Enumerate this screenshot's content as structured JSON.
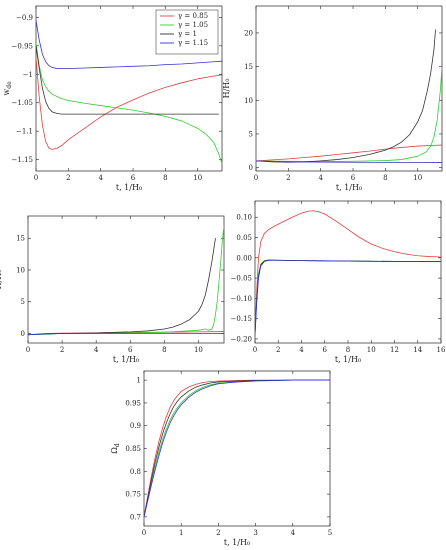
{
  "chart_data": [
    {
      "type": "line",
      "xlabel": "t, 1/H₀",
      "ylabel": "w_de",
      "xlim": [
        0,
        11.5
      ],
      "ylim": [
        -1.17,
        -0.88
      ],
      "xticks": [
        0,
        2,
        4,
        6,
        8,
        10
      ],
      "yticks": [
        -0.9,
        -0.95,
        -1,
        -1.05,
        -1.1,
        -1.15
      ],
      "ytick_labels": [
        "−0.9",
        "−0.95",
        "−1",
        "−1.05",
        "−1.1",
        "−1.15"
      ],
      "legend": "top-right",
      "series": [
        {
          "name": "γ = 0.85",
          "color": "#e04040",
          "x": [
            0,
            0.2,
            0.4,
            0.6,
            0.8,
            1.0,
            1.3,
            1.6,
            2,
            3,
            4,
            5,
            6,
            7,
            8,
            9,
            10,
            11,
            11.5
          ],
          "y": [
            -0.97,
            -1.04,
            -1.09,
            -1.118,
            -1.13,
            -1.132,
            -1.13,
            -1.125,
            -1.115,
            -1.095,
            -1.075,
            -1.058,
            -1.045,
            -1.033,
            -1.023,
            -1.015,
            -1.008,
            -1.003,
            -1.001
          ]
        },
        {
          "name": "γ = 1.05",
          "color": "#33cc33",
          "x": [
            0,
            0.2,
            0.4,
            0.6,
            0.8,
            1.0,
            1.5,
            2,
            3,
            4,
            5,
            6,
            7,
            8,
            9,
            10,
            10.5,
            11,
            11.3,
            11.5
          ],
          "y": [
            -0.945,
            -0.985,
            -1.01,
            -1.022,
            -1.03,
            -1.035,
            -1.042,
            -1.046,
            -1.051,
            -1.055,
            -1.059,
            -1.063,
            -1.068,
            -1.074,
            -1.082,
            -1.095,
            -1.105,
            -1.12,
            -1.14,
            -1.157
          ]
        },
        {
          "name": "γ = 1",
          "color": "#333333",
          "x": [
            0,
            0.2,
            0.4,
            0.6,
            0.8,
            1.0,
            1.3,
            1.6,
            2,
            3,
            4,
            6,
            8,
            10,
            11.3
          ],
          "y": [
            -0.95,
            -0.99,
            -1.025,
            -1.048,
            -1.06,
            -1.066,
            -1.069,
            -1.07,
            -1.07,
            -1.07,
            -1.07,
            -1.07,
            -1.07,
            -1.07,
            -1.07
          ]
        },
        {
          "name": "γ = 1.15",
          "color": "#3333cc",
          "x": [
            0,
            0.2,
            0.4,
            0.6,
            0.8,
            1.0,
            1.3,
            1.6,
            2,
            3,
            4,
            5,
            6,
            7,
            8,
            9,
            10,
            11,
            11.5
          ],
          "y": [
            -0.905,
            -0.94,
            -0.965,
            -0.978,
            -0.985,
            -0.988,
            -0.99,
            -0.99,
            -0.99,
            -0.989,
            -0.988,
            -0.987,
            -0.986,
            -0.985,
            -0.983,
            -0.982,
            -0.98,
            -0.978,
            -0.977
          ]
        }
      ]
    },
    {
      "type": "line",
      "xlabel": "t, 1/H₀",
      "ylabel": "H/H₀",
      "xlim": [
        0,
        11.5
      ],
      "ylim": [
        -0.5,
        24
      ],
      "xticks": [
        0,
        2,
        4,
        6,
        8,
        10
      ],
      "yticks": [
        0,
        5,
        10,
        15,
        20
      ],
      "series": [
        {
          "color": "#e04040",
          "x": [
            0,
            1,
            2,
            3,
            4,
            5,
            6,
            7,
            8,
            9,
            10,
            11,
            11.5
          ],
          "y": [
            1,
            1.15,
            1.3,
            1.5,
            1.7,
            1.95,
            2.2,
            2.45,
            2.75,
            3.0,
            3.2,
            3.3,
            3.35
          ]
        },
        {
          "color": "#33cc33",
          "x": [
            0,
            2,
            4,
            6,
            8,
            9,
            10,
            10.5,
            10.8,
            11,
            11.2,
            11.4,
            11.5
          ],
          "y": [
            1,
            0.95,
            0.9,
            0.95,
            1.05,
            1.2,
            1.7,
            2.3,
            3.2,
            4.5,
            7,
            11.5,
            15
          ]
        },
        {
          "color": "#333333",
          "x": [
            0,
            1,
            2,
            3,
            4,
            5,
            6,
            7,
            8,
            8.5,
            9,
            9.5,
            10,
            10.3,
            10.6,
            10.8,
            11,
            11.1
          ],
          "y": [
            1,
            0.85,
            0.8,
            0.85,
            1.0,
            1.2,
            1.5,
            1.95,
            2.6,
            3.1,
            3.8,
            4.9,
            6.8,
            8.5,
            11.5,
            14,
            17.5,
            20.5
          ]
        },
        {
          "color": "#3333cc",
          "x": [
            0,
            1,
            2,
            4,
            6,
            8,
            10,
            11.5
          ],
          "y": [
            1,
            0.9,
            0.85,
            0.82,
            0.8,
            0.78,
            0.76,
            0.75
          ]
        }
      ]
    },
    {
      "type": "line",
      "xlabel": "t, 1/H₀",
      "ylabel": "Ḣ/H₀",
      "xlim": [
        0,
        11.5
      ],
      "ylim": [
        -1.5,
        18.5
      ],
      "xticks": [
        0,
        2,
        4,
        6,
        8,
        10
      ],
      "yticks": [
        0,
        5,
        10,
        15
      ],
      "series": [
        {
          "color": "#e04040",
          "x": [
            0,
            1,
            2,
            4,
            6,
            8,
            10,
            11.5
          ],
          "y": [
            -0.2,
            0,
            0.05,
            0.1,
            0.15,
            0.2,
            0.25,
            0.3
          ]
        },
        {
          "color": "#33cc33",
          "x": [
            0,
            2,
            4,
            6,
            8,
            9,
            10,
            10.4,
            10.6,
            10.8,
            10.9,
            11,
            11.1,
            11.2,
            11.3,
            11.4,
            11.5
          ],
          "y": [
            -0.2,
            0,
            0.05,
            0.1,
            0.2,
            0.35,
            0.5,
            0.7,
            0.5,
            0.7,
            1.5,
            3,
            5,
            8,
            11,
            14.5,
            17
          ]
        },
        {
          "color": "#333333",
          "x": [
            0,
            2,
            4,
            6,
            7,
            8,
            8.5,
            9,
            9.5,
            10,
            10.2,
            10.4,
            10.6,
            10.8,
            11
          ],
          "y": [
            -0.2,
            0,
            0.1,
            0.25,
            0.4,
            0.7,
            1.0,
            1.5,
            2.2,
            3.5,
            4.5,
            6,
            8.5,
            11.5,
            15
          ]
        },
        {
          "color": "#3333cc",
          "x": [
            0,
            1,
            2,
            4,
            6,
            8,
            10,
            11.5
          ],
          "y": [
            -0.2,
            -0.05,
            0,
            0,
            0,
            0,
            0,
            0
          ]
        }
      ]
    },
    {
      "type": "line",
      "xlabel": "t, 1/H₀",
      "ylabel": "",
      "xlim": [
        0,
        16
      ],
      "ylim": [
        -0.21,
        0.14
      ],
      "xticks": [
        0,
        2,
        4,
        6,
        8,
        10,
        12,
        14,
        16
      ],
      "yticks": [
        0.1,
        0.05,
        0,
        -0.05,
        -0.1,
        -0.15,
        -0.2
      ],
      "ytick_labels": [
        "0.10",
        "0.05",
        "0.00",
        "−0.05",
        "−0.10",
        "−0.15",
        "−0.20"
      ],
      "series": [
        {
          "color": "#e04040",
          "x": [
            0,
            0.15,
            0.3,
            0.5,
            0.8,
            1.2,
            1.8,
            2.5,
            3.2,
            4,
            4.6,
            5,
            5.4,
            6,
            7,
            8,
            9,
            10,
            11,
            12,
            13,
            14,
            15,
            16
          ],
          "y": [
            -0.19,
            -0.08,
            0.0,
            0.04,
            0.06,
            0.07,
            0.08,
            0.09,
            0.1,
            0.11,
            0.115,
            0.116,
            0.114,
            0.108,
            0.09,
            0.07,
            0.05,
            0.034,
            0.023,
            0.015,
            0.009,
            0.005,
            0.003,
            0.002
          ]
        },
        {
          "color": "#33cc33",
          "x": [
            0,
            0.15,
            0.3,
            0.5,
            0.8,
            1.2,
            2,
            4,
            8,
            12,
            16
          ],
          "y": [
            -0.19,
            -0.1,
            -0.04,
            -0.015,
            -0.007,
            -0.005,
            -0.006,
            -0.007,
            -0.008,
            -0.009,
            -0.009
          ]
        },
        {
          "color": "#333333",
          "x": [
            0,
            0.15,
            0.3,
            0.5,
            0.8,
            1.2,
            2,
            4,
            8,
            12,
            16
          ],
          "y": [
            -0.19,
            -0.1,
            -0.045,
            -0.017,
            -0.008,
            -0.006,
            -0.006,
            -0.007,
            -0.008,
            -0.009,
            -0.009
          ]
        },
        {
          "color": "#3333cc",
          "x": [
            0,
            0.15,
            0.3,
            0.5,
            0.8,
            1.2,
            2,
            4,
            8,
            12,
            16
          ],
          "y": [
            -0.19,
            -0.11,
            -0.05,
            -0.02,
            -0.009,
            -0.006,
            -0.006,
            -0.007,
            -0.008,
            -0.009,
            -0.009
          ]
        }
      ]
    },
    {
      "type": "line",
      "xlabel": "t, 1/H₀",
      "ylabel": "Ω_d",
      "xlim": [
        0,
        5
      ],
      "ylim": [
        0.68,
        1.02
      ],
      "xticks": [
        0,
        1,
        2,
        3,
        4,
        5
      ],
      "yticks": [
        0.7,
        0.75,
        0.8,
        0.85,
        0.9,
        0.95,
        1
      ],
      "ytick_labels": [
        "0.7",
        "0.75",
        "0.8",
        "0.85",
        "0.9",
        "0.95",
        "1"
      ],
      "series": [
        {
          "color": "#e04040",
          "x": [
            0,
            0.1,
            0.2,
            0.3,
            0.4,
            0.5,
            0.6,
            0.7,
            0.8,
            0.9,
            1.0,
            1.2,
            1.4,
            1.6,
            1.8,
            2.0,
            2.5,
            3,
            4,
            5
          ],
          "y": [
            0.7,
            0.745,
            0.79,
            0.83,
            0.865,
            0.895,
            0.92,
            0.94,
            0.955,
            0.966,
            0.975,
            0.985,
            0.991,
            0.995,
            0.997,
            0.998,
            0.999,
            1,
            1,
            1
          ]
        },
        {
          "color": "#33cc33",
          "x": [
            0,
            0.1,
            0.2,
            0.3,
            0.4,
            0.5,
            0.6,
            0.7,
            0.8,
            0.9,
            1.0,
            1.2,
            1.4,
            1.6,
            1.8,
            2.0,
            2.5,
            3,
            4,
            5
          ],
          "y": [
            0.7,
            0.738,
            0.775,
            0.81,
            0.842,
            0.87,
            0.893,
            0.912,
            0.928,
            0.94,
            0.95,
            0.966,
            0.977,
            0.985,
            0.99,
            0.993,
            0.997,
            0.999,
            1,
            1
          ]
        },
        {
          "color": "#333333",
          "x": [
            0,
            0.1,
            0.2,
            0.3,
            0.4,
            0.5,
            0.6,
            0.7,
            0.8,
            0.9,
            1.0,
            1.2,
            1.4,
            1.6,
            1.8,
            2.0,
            2.5,
            3,
            4,
            5
          ],
          "y": [
            0.7,
            0.741,
            0.782,
            0.82,
            0.853,
            0.882,
            0.906,
            0.926,
            0.942,
            0.954,
            0.963,
            0.976,
            0.985,
            0.99,
            0.994,
            0.996,
            0.998,
            0.999,
            1,
            1
          ]
        },
        {
          "color": "#3333cc",
          "x": [
            0,
            0.1,
            0.2,
            0.3,
            0.4,
            0.5,
            0.6,
            0.7,
            0.8,
            0.9,
            1.0,
            1.2,
            1.4,
            1.6,
            1.8,
            2.0,
            2.5,
            3,
            4,
            5
          ],
          "y": [
            0.7,
            0.735,
            0.77,
            0.803,
            0.834,
            0.862,
            0.886,
            0.906,
            0.922,
            0.935,
            0.946,
            0.962,
            0.974,
            0.982,
            0.988,
            0.992,
            0.996,
            0.998,
            1,
            1
          ]
        }
      ]
    }
  ]
}
